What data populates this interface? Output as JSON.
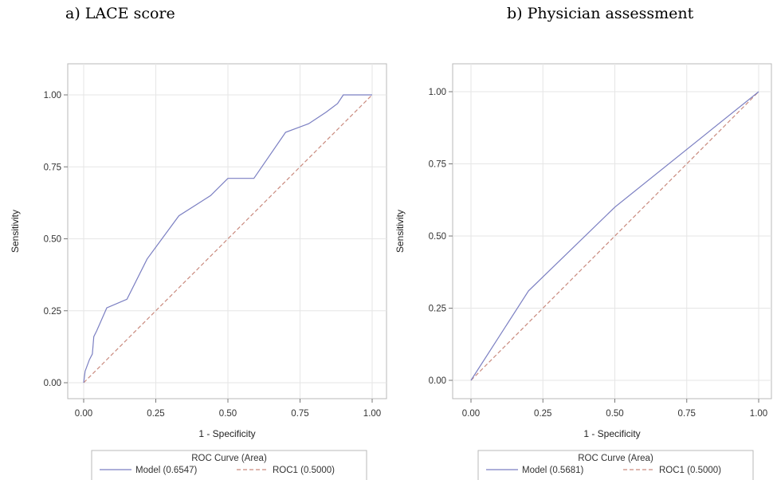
{
  "chart_data": [
    {
      "type": "line",
      "title": "a)   LACE score",
      "xlabel": "1 - Specificity",
      "ylabel": "Sensitivity",
      "xlim": [
        0,
        1
      ],
      "ylim": [
        0,
        1
      ],
      "xticks": [
        "0.00",
        "0.25",
        "0.50",
        "0.75",
        "1.00"
      ],
      "yticks": [
        "0.00",
        "0.25",
        "0.50",
        "0.75",
        "1.00"
      ],
      "grid": true,
      "legend_title": "ROC Curve (Area)",
      "series": [
        {
          "name": "Model",
          "area_label": "(0.6547)",
          "color": "#7b7fc2",
          "style": "solid",
          "x": [
            0,
            0.005,
            0.02,
            0.03,
            0.035,
            0.045,
            0.08,
            0.15,
            0.22,
            0.33,
            0.44,
            0.5,
            0.59,
            0.7,
            0.78,
            0.84,
            0.88,
            0.9,
            1.0
          ],
          "y": [
            0,
            0.04,
            0.08,
            0.1,
            0.16,
            0.18,
            0.26,
            0.29,
            0.43,
            0.58,
            0.65,
            0.71,
            0.71,
            0.87,
            0.9,
            0.94,
            0.97,
            1.0,
            1.0
          ]
        },
        {
          "name": "ROC1",
          "area_label": "(0.5000)",
          "color": "#c98a7e",
          "style": "dashed",
          "x": [
            0,
            1
          ],
          "y": [
            0,
            1
          ]
        }
      ]
    },
    {
      "type": "line",
      "title": "b) Physician assessment",
      "xlabel": "1 - Specificity",
      "ylabel": "Sensitivity",
      "xlim": [
        0,
        1
      ],
      "ylim": [
        0,
        1
      ],
      "xticks": [
        "0.00",
        "0.25",
        "0.50",
        "0.75",
        "1.00"
      ],
      "yticks": [
        "0.00",
        "0.25",
        "0.50",
        "0.75",
        "1.00"
      ],
      "grid": true,
      "legend_title": "ROC Curve (Area)",
      "series": [
        {
          "name": "Model",
          "area_label": "(0.5681)",
          "color": "#7b7fc2",
          "style": "solid",
          "x": [
            0,
            0.2,
            0.5,
            1.0
          ],
          "y": [
            0,
            0.31,
            0.6,
            1.0
          ]
        },
        {
          "name": "ROC1",
          "area_label": "(0.5000)",
          "color": "#c98a7e",
          "style": "dashed",
          "x": [
            0,
            1
          ],
          "y": [
            0,
            1
          ]
        }
      ]
    }
  ]
}
